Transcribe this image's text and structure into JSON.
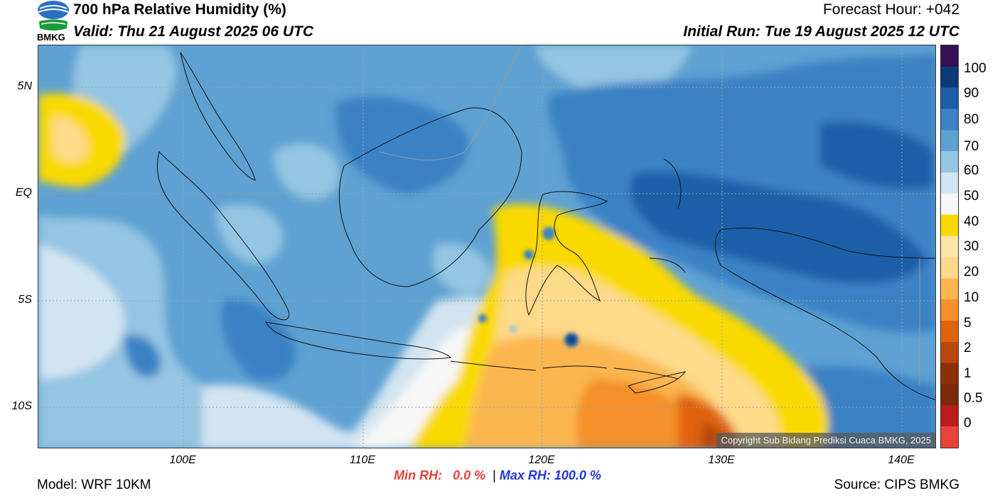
{
  "header": {
    "title": "700 hPa Relative Humidity (%)",
    "valid": "Valid: Thu 21 August 2025 06 UTC",
    "forecast_hour": "Forecast Hour: +042",
    "initial_run": "Initial Run: Tue 19 August 2025 12 UTC"
  },
  "logo": {
    "text": "BMKG",
    "icon": "bmkg-logo-icon",
    "colors": [
      "#2a6fc4",
      "#1a9a3a"
    ]
  },
  "map": {
    "lat_ticks": [
      "5N",
      "EQ",
      "5S",
      "10S"
    ],
    "lon_ticks": [
      "100E",
      "110E",
      "120E",
      "130E",
      "140E"
    ],
    "copyright": "Copyright Sub Bidang Prediksi Cuaca BMKG, 2025"
  },
  "colorbar": {
    "labels": [
      "100",
      "90",
      "80",
      "70",
      "60",
      "50",
      "40",
      "30",
      "20",
      "10",
      "5",
      "2",
      "1",
      "0.5",
      "0"
    ],
    "colors": [
      "#e8433a",
      "#b81c1c",
      "#7a2a0a",
      "#8c3008",
      "#b8480c",
      "#e0620c",
      "#f5902a",
      "#fbb64f",
      "#fdd98a",
      "#fbe7a8",
      "#f9d900",
      "#f7f7f7",
      "#d2e4f1",
      "#94c5e2",
      "#5ea1d2",
      "#3a82c4",
      "#1e5ea8",
      "#0b3a78",
      "#351052"
    ]
  },
  "stats": {
    "min_label": "Min RH:",
    "min_value": "0.0 %",
    "separator": "|",
    "max_label": "Max RH:",
    "max_value": "100.0 %",
    "min_color": "#e8433a",
    "max_color": "#2038d8"
  },
  "footer": {
    "model": "Model: WRF 10KM",
    "source": "Source: CIPS BMKG"
  }
}
